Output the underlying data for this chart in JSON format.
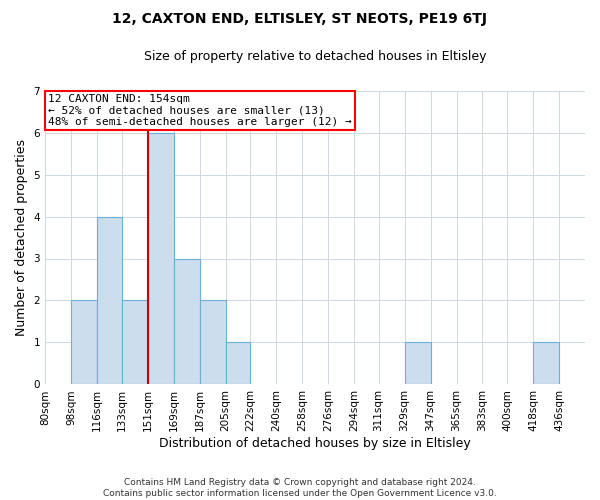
{
  "title": "12, CAXTON END, ELTISLEY, ST NEOTS, PE19 6TJ",
  "subtitle": "Size of property relative to detached houses in Eltisley",
  "xlabel": "Distribution of detached houses by size in Eltisley",
  "ylabel": "Number of detached properties",
  "footer_line1": "Contains HM Land Registry data © Crown copyright and database right 2024.",
  "footer_line2": "Contains public sector information licensed under the Open Government Licence v3.0.",
  "annotation_line1": "12 CAXTON END: 154sqm",
  "annotation_line2": "← 52% of detached houses are smaller (13)",
  "annotation_line3": "48% of semi-detached houses are larger (12) →",
  "bin_labels": [
    "80sqm",
    "98sqm",
    "116sqm",
    "133sqm",
    "151sqm",
    "169sqm",
    "187sqm",
    "205sqm",
    "222sqm",
    "240sqm",
    "258sqm",
    "276sqm",
    "294sqm",
    "311sqm",
    "329sqm",
    "347sqm",
    "365sqm",
    "383sqm",
    "400sqm",
    "418sqm",
    "436sqm"
  ],
  "bar_values": [
    0,
    2,
    4,
    2,
    6,
    3,
    2,
    1,
    0,
    0,
    0,
    0,
    0,
    0,
    1,
    0,
    0,
    0,
    0,
    1,
    0
  ],
  "bar_color": "#ccdded",
  "bar_edge_color": "#6baed6",
  "bin_edges": [
    80,
    98,
    116,
    133,
    151,
    169,
    187,
    205,
    222,
    240,
    258,
    276,
    294,
    311,
    329,
    347,
    365,
    383,
    400,
    418,
    436,
    454
  ],
  "vline_x": 151,
  "vline_color": "#cc0000",
  "ylim": [
    0,
    7
  ],
  "yticks": [
    0,
    1,
    2,
    3,
    4,
    5,
    6,
    7
  ],
  "annotation_box_edge": "red",
  "grid_color": "#d0d8e0",
  "background_color": "white",
  "title_fontsize": 10,
  "subtitle_fontsize": 9,
  "axis_label_fontsize": 9,
  "tick_fontsize": 7.5,
  "annotation_fontsize": 8,
  "footer_fontsize": 6.5
}
